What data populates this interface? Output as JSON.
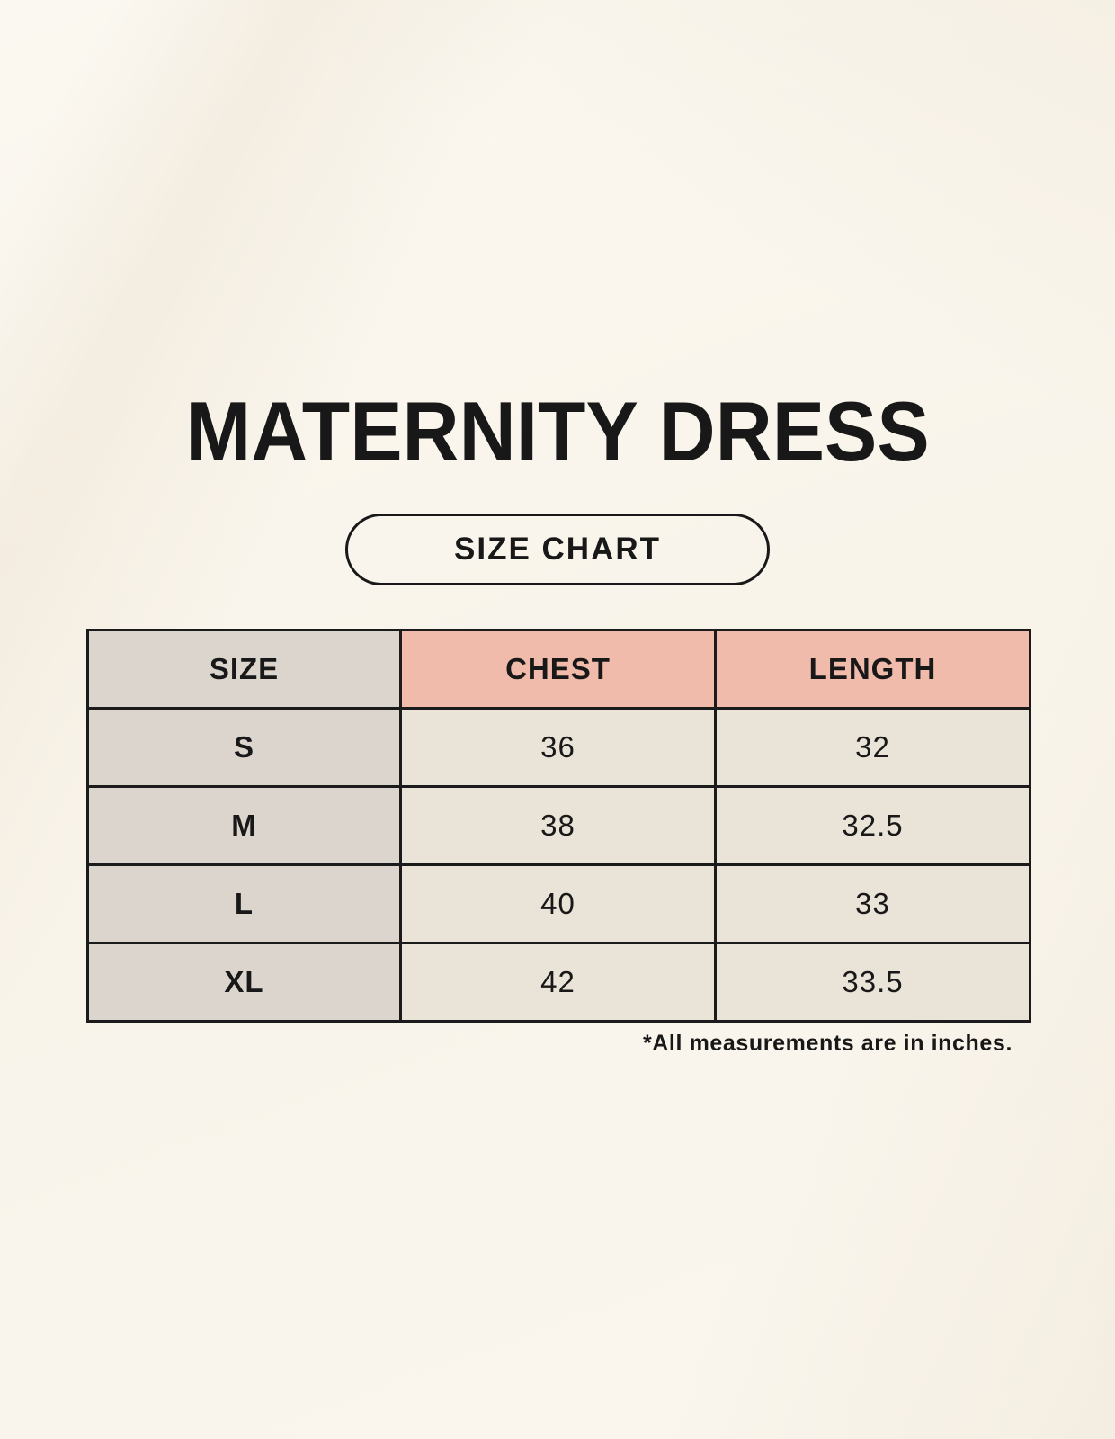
{
  "page": {
    "title": "MATERNITY DRESS",
    "button_label": "SIZE CHART",
    "footnote": "*All measurements are in inches."
  },
  "table": {
    "headers": [
      "SIZE",
      "CHEST",
      "LENGTH"
    ],
    "rows": [
      {
        "size": "S",
        "chest": "36",
        "length": "32"
      },
      {
        "size": "M",
        "chest": "38",
        "length": "32.5"
      },
      {
        "size": "L",
        "chest": "40",
        "length": "33"
      },
      {
        "size": "XL",
        "chest": "42",
        "length": "33.5"
      }
    ]
  },
  "colors": {
    "background": "#faf6ee",
    "ink": "#181818",
    "border": "#1b1b1b",
    "size_column_bg": "#dcd5ce",
    "header_accent_bg": "#f0bbaa",
    "data_cell_bg": "#eae3d7"
  }
}
